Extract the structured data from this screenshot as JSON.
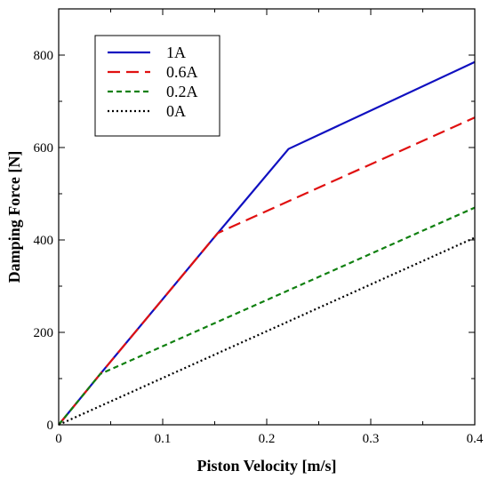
{
  "chart_data": {
    "type": "line",
    "title": "",
    "xlabel": "Piston Velocity [m/s]",
    "ylabel": "Damping Force [N]",
    "xlim": [
      0,
      0.4
    ],
    "ylim": [
      0,
      900
    ],
    "x_ticks": [
      0,
      0.1,
      0.2,
      0.3,
      0.4
    ],
    "x_tick_labels": [
      "0",
      "0.1",
      "0.2",
      "0.3",
      "0.4"
    ],
    "y_ticks": [
      0,
      200,
      400,
      600,
      800
    ],
    "y_tick_labels": [
      "0",
      "200",
      "400",
      "600",
      "800"
    ],
    "grid": false,
    "legend_position": "top-left",
    "series": [
      {
        "name": "1A",
        "color": "#1010c0",
        "dash": "solid",
        "x": [
          0,
          0.04,
          0.153,
          0.221,
          0.4
        ],
        "y": [
          0,
          110,
          415,
          597,
          785
        ]
      },
      {
        "name": "0.6A",
        "color": "#e01010",
        "dash": "long-dash",
        "x": [
          0,
          0.04,
          0.153,
          0.4
        ],
        "y": [
          0,
          110,
          415,
          665
        ]
      },
      {
        "name": "0.2A",
        "color": "#108010",
        "dash": "short-dash",
        "x": [
          0,
          0.04,
          0.4
        ],
        "y": [
          0,
          110,
          470
        ]
      },
      {
        "name": "0A",
        "color": "#000000",
        "dash": "dotted",
        "x": [
          0,
          0.4
        ],
        "y": [
          0,
          405
        ]
      }
    ]
  }
}
